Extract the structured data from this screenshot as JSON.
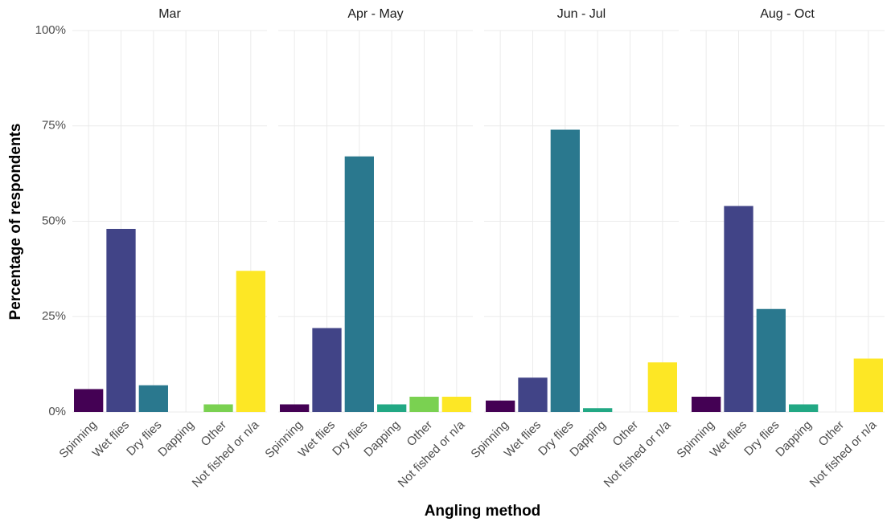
{
  "chart_data": {
    "type": "bar",
    "xlabel": "Angling method",
    "ylabel": "Percentage of respondents",
    "categories": [
      "Spinning",
      "Wet flies",
      "Dry flies",
      "Dapping",
      "Other",
      "Not fished or n/a"
    ],
    "colors": [
      "#440154",
      "#414487",
      "#2A788E",
      "#22A884",
      "#7AD151",
      "#FDE725"
    ],
    "facets": [
      {
        "title": "Mar",
        "values": [
          6,
          48,
          7,
          0,
          2,
          37
        ]
      },
      {
        "title": "Apr - May",
        "values": [
          2,
          22,
          67,
          2,
          4,
          4
        ]
      },
      {
        "title": "Jun - Jul",
        "values": [
          3,
          9,
          74,
          1,
          0,
          13
        ]
      },
      {
        "title": "Aug - Oct",
        "values": [
          4,
          54,
          27,
          2,
          0,
          14
        ]
      }
    ],
    "ylim": [
      0,
      100
    ],
    "yticks": [
      {
        "value": 0,
        "label": "0%"
      },
      {
        "value": 25,
        "label": "25%"
      },
      {
        "value": 50,
        "label": "50%"
      },
      {
        "value": 75,
        "label": "75%"
      },
      {
        "value": 100,
        "label": "100%"
      }
    ],
    "grid": true
  }
}
